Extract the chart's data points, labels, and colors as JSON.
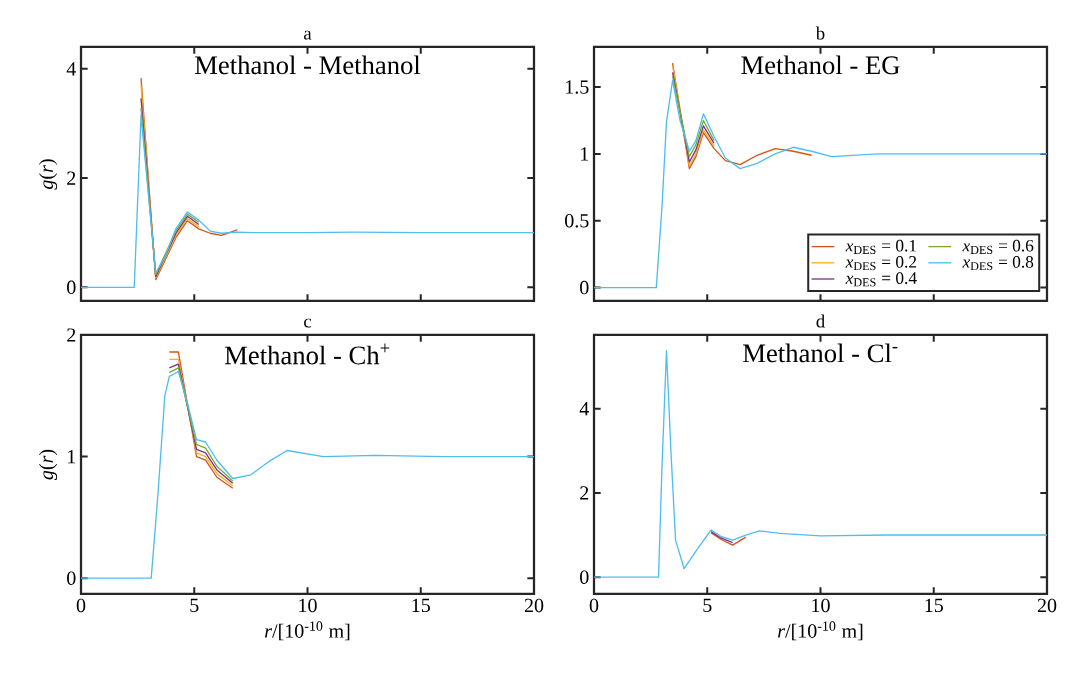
{
  "chart_data": [
    {
      "type": "line",
      "title": "a",
      "ylabel": "*g*(*r*)",
      "xlim": [
        0,
        20
      ],
      "ylim": [
        -0.25,
        4.4
      ],
      "xticks": [
        0,
        5,
        10,
        15,
        20
      ],
      "yticks": [
        0,
        2,
        4
      ],
      "tick_labels": "y",
      "annotations": [
        "Methanol - Methanol"
      ],
      "series": [
        {
          "color": "#d95319",
          "x": [
            2.65,
            3.3,
            4.2,
            4.7,
            5.2,
            5.7,
            6.2,
            6.9
          ],
          "values": [
            3.83,
            0.14,
            0.92,
            1.22,
            1.07,
            0.99,
            0.95,
            1.05
          ]
        },
        {
          "color": "#edb120",
          "x": [
            2.65,
            3.3,
            4.2,
            4.7,
            5.2
          ],
          "values": [
            3.7,
            0.17,
            0.96,
            1.26,
            1.11
          ]
        },
        {
          "color": "#7e2f8e",
          "x": [
            2.65,
            3.3,
            4.2,
            4.7,
            5.2
          ],
          "values": [
            3.46,
            0.2,
            1.0,
            1.3,
            1.15
          ]
        },
        {
          "color": "#77ac30",
          "x": [
            2.65,
            3.3,
            4.2,
            4.7,
            5.2
          ],
          "values": [
            3.28,
            0.23,
            1.04,
            1.34,
            1.19
          ]
        },
        {
          "color": "#4dbeee",
          "x": [
            0,
            2.35,
            2.65,
            3.3,
            3.7,
            4.2,
            4.7,
            5.2,
            5.7,
            6.2,
            6.9,
            7.6,
            8.5,
            10,
            12,
            15,
            20
          ],
          "values": [
            0,
            0,
            3.15,
            0.26,
            0.55,
            1.08,
            1.38,
            1.23,
            1.03,
            0.99,
            1.01,
            1.0,
            1.0,
            1.0,
            1.01,
            1.0,
            1.0
          ]
        }
      ]
    },
    {
      "type": "line",
      "title": "b",
      "xlim": [
        0,
        20
      ],
      "ylim": [
        -0.1,
        1.8
      ],
      "xticks": [
        0,
        5,
        10,
        15,
        20
      ],
      "yticks": [
        0,
        0.5,
        1,
        1.5
      ],
      "tick_labels": "y",
      "legend": "bottom right",
      "annotations": [
        "Methanol - EG"
      ],
      "series": [
        {
          "name": "*x*$_{DES}$ = 0.1",
          "color": "#d95319",
          "x": [
            3.47,
            4.21,
            4.5,
            4.83,
            5.3,
            5.8,
            6.45,
            7.2,
            8.0,
            8.8,
            9.6
          ],
          "values": [
            1.68,
            0.89,
            0.98,
            1.16,
            1.04,
            0.95,
            0.92,
            0.99,
            1.04,
            1.02,
            0.99
          ]
        },
        {
          "name": "*x*$_{DES}$ = 0.2",
          "color": "#edb120",
          "x": [
            3.47,
            4.21,
            4.5,
            4.83,
            5.3
          ],
          "values": [
            1.66,
            0.91,
            1.0,
            1.18,
            1.06
          ]
        },
        {
          "name": "*x*$_{DES}$ = 0.4",
          "color": "#7e2f8e",
          "x": [
            3.47,
            4.21,
            4.5,
            4.83,
            5.3
          ],
          "values": [
            1.61,
            0.94,
            1.03,
            1.21,
            1.08
          ]
        },
        {
          "name": "*x*$_{DES}$ = 0.6",
          "color": "#77ac30",
          "x": [
            3.47,
            4.21,
            4.5,
            4.83,
            5.3
          ],
          "values": [
            1.58,
            0.98,
            1.07,
            1.25,
            1.1
          ]
        },
        {
          "name": "*x*$_{DES}$ = 0.8",
          "color": "#4dbeee",
          "x": [
            0,
            2.75,
            3.0,
            3.2,
            3.47,
            3.8,
            4.21,
            4.5,
            4.83,
            5.3,
            5.8,
            6.45,
            7.2,
            8.0,
            8.8,
            9.6,
            10.5,
            12.5,
            15,
            20
          ],
          "values": [
            0,
            0,
            0.6,
            1.24,
            1.55,
            1.25,
            1.02,
            1.1,
            1.3,
            1.13,
            0.97,
            0.89,
            0.93,
            1.0,
            1.05,
            1.02,
            0.98,
            1.0,
            1.0,
            1.0
          ]
        }
      ]
    },
    {
      "type": "line",
      "title": "c",
      "xlabel": "*r*/[10$^{-10}$ m]",
      "ylabel": "*g*(*r*)",
      "xlim": [
        0,
        20
      ],
      "ylim": [
        -0.13,
        2.0
      ],
      "xticks": [
        0,
        5,
        10,
        15,
        20
      ],
      "yticks": [
        0,
        1,
        2
      ],
      "annotations": [
        "Methanol - Ch$^{+}$"
      ],
      "series": [
        {
          "color": "#d95319",
          "x": [
            3.9,
            4.3,
            5.1,
            5.5,
            6.0,
            6.7
          ],
          "values": [
            1.86,
            1.86,
            1.0,
            0.97,
            0.83,
            0.74
          ]
        },
        {
          "color": "#edb120",
          "x": [
            3.9,
            4.3,
            5.1,
            5.5,
            6.0,
            6.7
          ],
          "values": [
            1.8,
            1.8,
            1.03,
            1.0,
            0.86,
            0.76
          ]
        },
        {
          "color": "#7e2f8e",
          "x": [
            3.9,
            4.3,
            5.1,
            5.5,
            6.0,
            6.7
          ],
          "values": [
            1.73,
            1.76,
            1.06,
            1.03,
            0.89,
            0.78
          ]
        },
        {
          "color": "#77ac30",
          "x": [
            3.9,
            4.3,
            5.1,
            5.5,
            6.0,
            6.7
          ],
          "values": [
            1.69,
            1.73,
            1.1,
            1.07,
            0.92,
            0.8
          ]
        },
        {
          "color": "#4dbeee",
          "x": [
            0,
            3.1,
            3.4,
            3.7,
            3.9,
            4.3,
            4.7,
            5.1,
            5.5,
            6.0,
            6.7,
            7.5,
            8.3,
            9.1,
            10.7,
            13,
            16,
            20
          ],
          "values": [
            0,
            0,
            0.7,
            1.5,
            1.66,
            1.7,
            1.44,
            1.14,
            1.12,
            0.97,
            0.82,
            0.85,
            0.96,
            1.05,
            1.0,
            1.01,
            1.0,
            1.0
          ]
        }
      ]
    },
    {
      "type": "line",
      "title": "d",
      "xlabel": "*r*/[10$^{-10}$ m]",
      "xlim": [
        0,
        20
      ],
      "ylim": [
        -0.4,
        5.75
      ],
      "xticks": [
        0,
        5,
        10,
        15,
        20
      ],
      "yticks": [
        0,
        2,
        4
      ],
      "annotations": [
        "Methanol - Cl$^{-}$"
      ],
      "series": [
        {
          "color": "#d95319",
          "x": [
            5.17,
            5.6,
            6.12,
            6.7
          ],
          "values": [
            1.05,
            0.9,
            0.76,
            0.95
          ]
        },
        {
          "color": "#7e2f8e",
          "x": [
            5.17,
            5.6,
            6.12
          ],
          "values": [
            1.08,
            0.93,
            0.82
          ]
        },
        {
          "color": "#4dbeee",
          "x": [
            0,
            2.85,
            3.0,
            3.2,
            3.4,
            3.6,
            3.98,
            4.5,
            5.17,
            5.6,
            6.12,
            6.7,
            7.3,
            8.2,
            10,
            13,
            20
          ],
          "values": [
            0,
            0,
            2.6,
            5.38,
            2.95,
            0.88,
            0.2,
            0.62,
            1.12,
            0.97,
            0.88,
            1.0,
            1.1,
            1.04,
            0.98,
            1.0,
            1.0
          ]
        }
      ]
    }
  ]
}
